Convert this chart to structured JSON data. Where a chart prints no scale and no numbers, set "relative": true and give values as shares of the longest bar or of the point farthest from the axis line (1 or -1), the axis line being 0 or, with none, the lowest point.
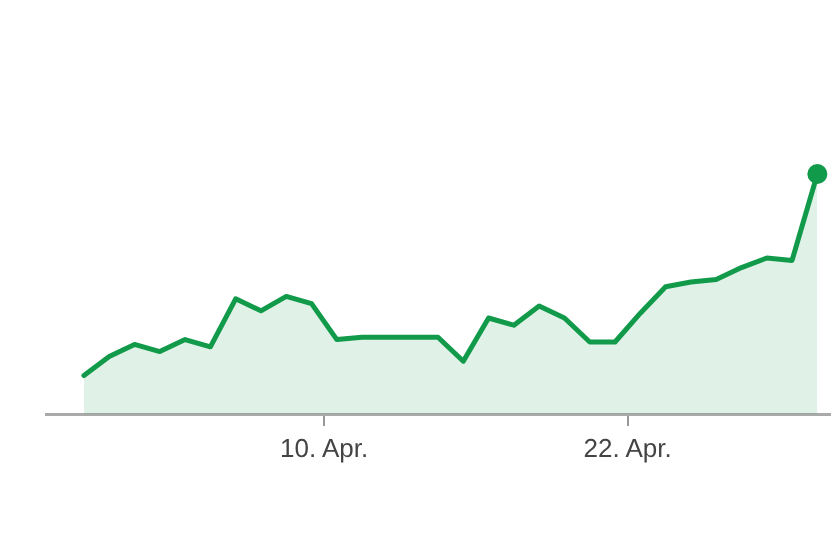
{
  "chart_data": {
    "type": "area",
    "relative": true,
    "x": [
      "--03-31T12:00",
      "--04-01T12:00",
      "--04-02T12:00",
      "--04-03T12:00",
      "--04-04T12:00",
      "--04-05T12:00",
      "--04-06T12:00",
      "--04-07T12:00",
      "--04-08T12:00",
      "--04-09T12:00",
      "--04-10T12:00",
      "--04-11T12:00",
      "--04-12T12:00",
      "--04-13T12:00",
      "--04-14T12:00",
      "--04-15T12:00",
      "--04-16T12:00",
      "--04-17T12:00",
      "--04-18T12:00",
      "--04-19T12:00",
      "--04-20T12:00",
      "--04-21T12:00",
      "--04-22T12:00",
      "--04-23T12:00",
      "--04-24T12:00",
      "--04-25T12:00",
      "--04-26T12:00",
      "--04-27T12:00",
      "--04-28T12:00",
      "--04-29T12:00"
    ],
    "series": [
      {
        "color": "#119a4a",
        "values": [
          0.16,
          0.24,
          0.29,
          0.26,
          0.31,
          0.28,
          0.48,
          0.43,
          0.49,
          0.46,
          0.31,
          0.32,
          0.32,
          0.32,
          0.32,
          0.22,
          0.4,
          0.37,
          0.45,
          0.4,
          0.3,
          0.3,
          0.42,
          0.53,
          0.55,
          0.56,
          0.61,
          0.65,
          0.64,
          1
        ]
      }
    ],
    "xlim": [
      "--03-30",
      "--04-30"
    ],
    "xticks": [
      {
        "value": "--04-10",
        "label": "10. Apr."
      },
      {
        "value": "--04-22",
        "label": "22. Apr."
      }
    ]
  }
}
